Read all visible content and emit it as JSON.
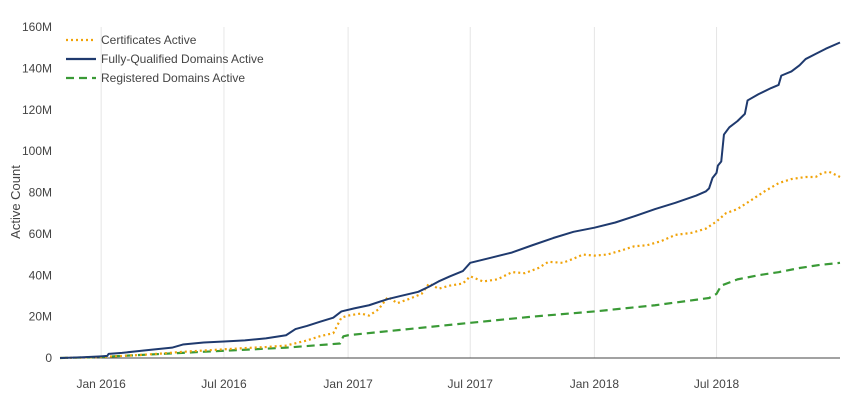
{
  "chart_data": {
    "type": "line",
    "title": "",
    "xlabel": "",
    "ylabel": "Active Count",
    "x_range": [
      "2015-11-01",
      "2018-12-31"
    ],
    "ylim": [
      0,
      160
    ],
    "y_unit": "M",
    "y_ticks": [
      0,
      20,
      40,
      60,
      80,
      100,
      120,
      140,
      160
    ],
    "y_tick_labels": [
      "0",
      "20M",
      "40M",
      "60M",
      "80M",
      "100M",
      "120M",
      "140M",
      "160M"
    ],
    "x_ticks": [
      "2016-01-01",
      "2016-07-01",
      "2017-01-01",
      "2017-07-01",
      "2018-01-01",
      "2018-07-01"
    ],
    "x_tick_labels": [
      "Jan 2016",
      "Jul 2016",
      "Jan 2017",
      "Jul 2017",
      "Jan 2018",
      "Jul 2018"
    ],
    "grid": "vertical",
    "legend_position": "top-left",
    "series": [
      {
        "name": "Certificates Active",
        "color": "#f0a30a",
        "dash": "dotted",
        "points": [
          [
            "2015-11-01",
            0
          ],
          [
            "2015-12-01",
            0.2
          ],
          [
            "2016-01-01",
            0.5
          ],
          [
            "2016-02-01",
            1.0
          ],
          [
            "2016-03-01",
            1.5
          ],
          [
            "2016-04-01",
            2.2
          ],
          [
            "2016-05-01",
            3.0
          ],
          [
            "2016-06-01",
            3.6
          ],
          [
            "2016-07-01",
            4.2
          ],
          [
            "2016-08-01",
            4.8
          ],
          [
            "2016-09-01",
            5.3
          ],
          [
            "2016-10-01",
            6.0
          ],
          [
            "2016-11-01",
            8.5
          ],
          [
            "2016-11-20",
            10.5
          ],
          [
            "2016-12-10",
            12.0
          ],
          [
            "2016-12-22",
            19.5
          ],
          [
            "2017-01-01",
            20.5
          ],
          [
            "2017-01-20",
            21.5
          ],
          [
            "2017-02-01",
            20.5
          ],
          [
            "2017-02-15",
            23.5
          ],
          [
            "2017-03-01",
            29.5
          ],
          [
            "2017-03-15",
            26.5
          ],
          [
            "2017-04-01",
            28.5
          ],
          [
            "2017-04-20",
            31.0
          ],
          [
            "2017-05-01",
            36.0
          ],
          [
            "2017-05-15",
            33.5
          ],
          [
            "2017-06-01",
            35.0
          ],
          [
            "2017-06-20",
            36.0
          ],
          [
            "2017-07-01",
            39.5
          ],
          [
            "2017-07-20",
            37.0
          ],
          [
            "2017-08-10",
            38.0
          ],
          [
            "2017-09-01",
            41.5
          ],
          [
            "2017-09-20",
            41.0
          ],
          [
            "2017-10-10",
            43.5
          ],
          [
            "2017-10-25",
            46.5
          ],
          [
            "2017-11-15",
            46.0
          ],
          [
            "2017-12-01",
            48.0
          ],
          [
            "2017-12-15",
            50.0
          ],
          [
            "2018-01-01",
            49.5
          ],
          [
            "2018-01-20",
            50.0
          ],
          [
            "2018-02-10",
            52.0
          ],
          [
            "2018-03-01",
            54.0
          ],
          [
            "2018-03-20",
            54.5
          ],
          [
            "2018-04-10",
            56.5
          ],
          [
            "2018-05-01",
            59.5
          ],
          [
            "2018-05-25",
            60.5
          ],
          [
            "2018-06-15",
            62.5
          ],
          [
            "2018-07-01",
            66.0
          ],
          [
            "2018-07-15",
            70.0
          ],
          [
            "2018-08-01",
            72.0
          ],
          [
            "2018-08-20",
            76.0
          ],
          [
            "2018-09-10",
            80.5
          ],
          [
            "2018-10-01",
            84.5
          ],
          [
            "2018-10-20",
            86.5
          ],
          [
            "2018-11-10",
            87.5
          ],
          [
            "2018-11-25",
            87.5
          ],
          [
            "2018-12-05",
            89.5
          ],
          [
            "2018-12-15",
            90.0
          ],
          [
            "2018-12-31",
            87.5
          ]
        ]
      },
      {
        "name": "Fully-Qualified Domains Active",
        "color": "#1f3a6e",
        "dash": "solid",
        "points": [
          [
            "2015-11-01",
            0
          ],
          [
            "2015-12-01",
            0.3
          ],
          [
            "2016-01-01",
            0.8
          ],
          [
            "2016-01-10",
            1.0
          ],
          [
            "2016-01-12",
            2.0
          ],
          [
            "2016-02-01",
            2.5
          ],
          [
            "2016-03-01",
            3.5
          ],
          [
            "2016-03-15",
            4.0
          ],
          [
            "2016-04-15",
            5.0
          ],
          [
            "2016-05-01",
            6.5
          ],
          [
            "2016-06-01",
            7.5
          ],
          [
            "2016-07-01",
            8.0
          ],
          [
            "2016-08-01",
            8.5
          ],
          [
            "2016-09-01",
            9.5
          ],
          [
            "2016-10-01",
            11.0
          ],
          [
            "2016-10-15",
            14.0
          ],
          [
            "2016-11-01",
            15.5
          ],
          [
            "2016-11-20",
            17.5
          ],
          [
            "2016-12-10",
            19.5
          ],
          [
            "2016-12-22",
            22.5
          ],
          [
            "2017-01-10",
            24.0
          ],
          [
            "2017-02-01",
            25.5
          ],
          [
            "2017-03-01",
            28.5
          ],
          [
            "2017-03-20",
            30.0
          ],
          [
            "2017-04-15",
            32.0
          ],
          [
            "2017-05-01",
            34.5
          ],
          [
            "2017-05-15",
            37.0
          ],
          [
            "2017-06-01",
            39.5
          ],
          [
            "2017-06-20",
            42.0
          ],
          [
            "2017-07-01",
            46.0
          ],
          [
            "2017-08-01",
            48.5
          ],
          [
            "2017-09-01",
            51.0
          ],
          [
            "2017-10-01",
            54.5
          ],
          [
            "2017-11-01",
            58.0
          ],
          [
            "2017-12-01",
            61.0
          ],
          [
            "2018-01-01",
            63.0
          ],
          [
            "2018-02-01",
            65.5
          ],
          [
            "2018-03-01",
            68.5
          ],
          [
            "2018-04-01",
            72.0
          ],
          [
            "2018-05-01",
            75.0
          ],
          [
            "2018-06-01",
            78.5
          ],
          [
            "2018-06-15",
            80.5
          ],
          [
            "2018-06-20",
            82.0
          ],
          [
            "2018-06-25",
            87.0
          ],
          [
            "2018-07-01",
            89.5
          ],
          [
            "2018-07-03",
            93.0
          ],
          [
            "2018-07-08",
            95.0
          ],
          [
            "2018-07-12",
            108.0
          ],
          [
            "2018-07-20",
            111.5
          ],
          [
            "2018-08-01",
            114.5
          ],
          [
            "2018-08-12",
            118.0
          ],
          [
            "2018-08-16",
            124.5
          ],
          [
            "2018-09-01",
            127.5
          ],
          [
            "2018-09-20",
            130.5
          ],
          [
            "2018-10-01",
            132.0
          ],
          [
            "2018-10-05",
            136.5
          ],
          [
            "2018-10-20",
            138.5
          ],
          [
            "2018-11-01",
            141.5
          ],
          [
            "2018-11-10",
            144.5
          ],
          [
            "2018-11-25",
            147.0
          ],
          [
            "2018-12-10",
            149.5
          ],
          [
            "2018-12-31",
            152.5
          ]
        ]
      },
      {
        "name": "Registered Domains Active",
        "color": "#3a9a36",
        "dash": "dashed",
        "points": [
          [
            "2015-11-01",
            0
          ],
          [
            "2016-01-01",
            0.5
          ],
          [
            "2016-04-01",
            2.0
          ],
          [
            "2016-07-01",
            3.5
          ],
          [
            "2016-10-01",
            5.0
          ],
          [
            "2016-12-20",
            7.0
          ],
          [
            "2016-12-25",
            10.5
          ],
          [
            "2017-01-01",
            11.0
          ],
          [
            "2017-04-01",
            14.0
          ],
          [
            "2017-07-01",
            17.0
          ],
          [
            "2017-10-01",
            20.0
          ],
          [
            "2018-01-01",
            22.5
          ],
          [
            "2018-04-01",
            25.5
          ],
          [
            "2018-06-20",
            29.0
          ],
          [
            "2018-07-01",
            31.0
          ],
          [
            "2018-07-08",
            35.0
          ],
          [
            "2018-08-01",
            38.0
          ],
          [
            "2018-09-01",
            40.0
          ],
          [
            "2018-10-01",
            41.5
          ],
          [
            "2018-11-01",
            43.5
          ],
          [
            "2018-12-01",
            45.0
          ],
          [
            "2018-12-31",
            46.0
          ]
        ]
      }
    ]
  }
}
